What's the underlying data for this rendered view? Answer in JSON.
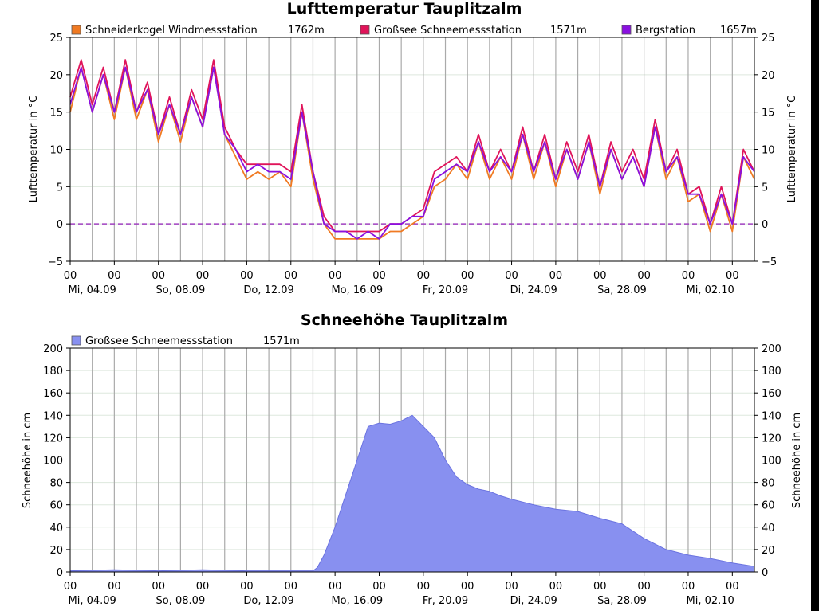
{
  "charts": [
    {
      "type": "line",
      "title": "Lufttemperatur   Tauplitzalm",
      "ylabel": "Lufttemperatur in °C",
      "ylim": [
        -5,
        25
      ],
      "yticks": [
        -5,
        0,
        5,
        10,
        15,
        20,
        25
      ],
      "x_day_range": [
        0,
        31
      ],
      "x_tick_labels": [
        "00",
        "00",
        "00",
        "00",
        "00",
        "00",
        "00",
        "00",
        "00",
        "00",
        "00",
        "00",
        "00",
        "00",
        "00",
        "00"
      ],
      "x_date_labels": [
        "Mi, 04.09",
        "So, 08.09",
        "Do, 12.09",
        "Mo, 16.09",
        "Fr, 20.09",
        "Di, 24.09",
        "Sa, 28.09",
        "Mi, 02.10"
      ],
      "reference_line": {
        "y": 0,
        "color": "#a040c0"
      },
      "grid": true,
      "legend_position": "top",
      "series": [
        {
          "name": "Schneiderkogel Windmessstation",
          "alt": "1762m",
          "color": "#f07a22",
          "x": [
            0,
            0.5,
            1,
            1.5,
            2,
            2.5,
            3,
            3.5,
            4,
            4.5,
            5,
            5.5,
            6,
            6.5,
            7,
            7.5,
            8,
            8.5,
            9,
            9.5,
            10,
            10.5,
            11,
            11.5,
            12,
            12.5,
            13,
            13.5,
            14,
            14.5,
            15,
            15.5,
            16,
            16.5,
            17,
            17.5,
            18,
            18.5,
            19,
            19.5,
            20,
            20.5,
            21,
            21.5,
            22,
            22.5,
            23,
            23.5,
            24,
            24.5,
            25,
            25.5,
            26,
            26.5,
            27,
            27.5,
            28,
            28.5,
            29,
            29.5,
            30,
            30.5,
            31
          ],
          "values": [
            15,
            21,
            15,
            20,
            14,
            21,
            14,
            18,
            11,
            16,
            11,
            17,
            13,
            21,
            12,
            9,
            6,
            7,
            6,
            7,
            5,
            15,
            6,
            0,
            -2,
            -2,
            -2,
            -2,
            -2,
            -1,
            -1,
            0,
            1,
            5,
            6,
            8,
            6,
            11,
            6,
            9,
            6,
            12,
            6,
            11,
            5,
            10,
            6,
            11,
            4,
            10,
            6,
            9,
            5,
            13,
            6,
            9,
            3,
            4,
            -1,
            4,
            -1,
            9,
            6
          ]
        },
        {
          "name": "Großsee Schneemessstation",
          "alt": "1571m",
          "color": "#e0145a",
          "x": [
            0,
            0.5,
            1,
            1.5,
            2,
            2.5,
            3,
            3.5,
            4,
            4.5,
            5,
            5.5,
            6,
            6.5,
            7,
            7.5,
            8,
            8.5,
            9,
            9.5,
            10,
            10.5,
            11,
            11.5,
            12,
            12.5,
            13,
            13.5,
            14,
            14.5,
            15,
            15.5,
            16,
            16.5,
            17,
            17.5,
            18,
            18.5,
            19,
            19.5,
            20,
            20.5,
            21,
            21.5,
            22,
            22.5,
            23,
            23.5,
            24,
            24.5,
            25,
            25.5,
            26,
            26.5,
            27,
            27.5,
            28,
            28.5,
            29,
            29.5,
            30,
            30.5,
            31
          ],
          "values": [
            17,
            22,
            16,
            21,
            15,
            22,
            15,
            19,
            12,
            17,
            12,
            18,
            14,
            22,
            13,
            10,
            8,
            8,
            8,
            8,
            7,
            16,
            7,
            1,
            -1,
            -1,
            -1,
            -1,
            -1,
            0,
            0,
            1,
            2,
            7,
            8,
            9,
            7,
            12,
            7,
            10,
            7,
            13,
            7,
            12,
            6,
            11,
            7,
            12,
            5,
            11,
            7,
            10,
            6,
            14,
            7,
            10,
            4,
            5,
            0,
            5,
            0,
            10,
            7
          ]
        },
        {
          "name": "Bergstation",
          "alt": "1657m",
          "color": "#8a10e0",
          "x": [
            0,
            0.5,
            1,
            1.5,
            2,
            2.5,
            3,
            3.5,
            4,
            4.5,
            5,
            5.5,
            6,
            6.5,
            7,
            7.5,
            8,
            8.5,
            9,
            9.5,
            10,
            10.5,
            11,
            11.5,
            12,
            12.5,
            13,
            13.5,
            14,
            14.5,
            15,
            15.5,
            16,
            16.5,
            17,
            17.5,
            18,
            18.5,
            19,
            19.5,
            20,
            20.5,
            21,
            21.5,
            22,
            22.5,
            23,
            23.5,
            24,
            24.5,
            25,
            25.5,
            26,
            26.5,
            27,
            27.5,
            28,
            28.5,
            29,
            29.5,
            30,
            30.5,
            31
          ],
          "values": [
            16,
            21,
            15,
            20,
            15,
            21,
            15,
            18,
            12,
            16,
            12,
            17,
            13,
            21,
            12,
            10,
            7,
            8,
            7,
            7,
            6,
            15,
            7,
            0,
            -1,
            -1,
            -2,
            -1,
            -2,
            0,
            0,
            1,
            1,
            6,
            7,
            8,
            7,
            11,
            7,
            9,
            7,
            12,
            7,
            11,
            6,
            10,
            6,
            11,
            5,
            10,
            6,
            9,
            5,
            13,
            7,
            9,
            4,
            4,
            0,
            4,
            0,
            9,
            7
          ]
        }
      ]
    },
    {
      "type": "area",
      "title": "Schneehöhe   Tauplitzalm",
      "ylabel": "Schneehöhe in cm",
      "ylim": [
        0,
        200
      ],
      "yticks": [
        0,
        20,
        40,
        60,
        80,
        100,
        120,
        140,
        160,
        180,
        200
      ],
      "x_day_range": [
        0,
        31
      ],
      "x_tick_labels": [
        "00",
        "00",
        "00",
        "00",
        "00",
        "00",
        "00",
        "00",
        "00",
        "00",
        "00",
        "00",
        "00",
        "00",
        "00",
        "00"
      ],
      "x_date_labels": [
        "Mi, 04.09",
        "So, 08.09",
        "Do, 12.09",
        "Mo, 16.09",
        "Fr, 20.09",
        "Di, 24.09",
        "Sa, 28.09",
        "Mi, 02.10"
      ],
      "grid": true,
      "legend_position": "top-left",
      "series": [
        {
          "name": "Großsee Schneemessstation",
          "alt": "1571m",
          "color": "#8890f0",
          "x": [
            0,
            2,
            4,
            6,
            8,
            10,
            11,
            11.2,
            11.5,
            12,
            12.5,
            13,
            13.5,
            14,
            14.5,
            15,
            15.5,
            16,
            16.5,
            17,
            17.5,
            18,
            18.5,
            19,
            19.5,
            20,
            21,
            22,
            23,
            24,
            25,
            26,
            27,
            28,
            29,
            30,
            31
          ],
          "values": [
            1,
            2,
            1,
            2,
            1,
            1,
            1,
            4,
            15,
            40,
            70,
            100,
            130,
            133,
            132,
            135,
            140,
            130,
            120,
            100,
            85,
            78,
            74,
            72,
            68,
            65,
            60,
            56,
            54,
            48,
            43,
            30,
            20,
            15,
            12,
            8,
            5
          ]
        }
      ]
    }
  ]
}
